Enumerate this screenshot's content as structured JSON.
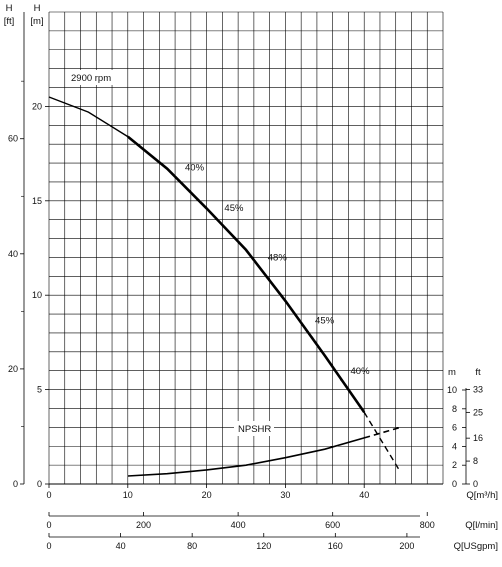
{
  "chart_data": {
    "type": "line",
    "title": "",
    "speed_label": "2900 rpm",
    "units": {
      "head_m_symbol": "H",
      "head_m": "[m]",
      "head_ft_symbol": "H",
      "head_ft": "[ft]",
      "npsh_m": "m",
      "npsh_ft": "ft",
      "q_m3h": "Q[m³/h]",
      "q_lmin": "Q[l/min]",
      "q_usgpm": "Q[USgpm]"
    },
    "axes": {
      "x_m3h": {
        "range": [
          0,
          50
        ],
        "ticks": [
          "0",
          "10",
          "20",
          "30",
          "40"
        ]
      },
      "x_lmin": {
        "ticks": [
          "0",
          "200",
          "400",
          "600",
          "800"
        ]
      },
      "x_usgpm": {
        "ticks": [
          "0",
          "40",
          "80",
          "120",
          "160",
          "200"
        ]
      },
      "y_head_m": {
        "range": [
          0,
          25
        ],
        "ticks": [
          "0",
          "5",
          "10",
          "15",
          "20"
        ]
      },
      "y_head_ft": {
        "ticks": [
          "0",
          "20",
          "40",
          "60"
        ]
      },
      "y_npsh_m": {
        "range": [
          0,
          10
        ],
        "ticks": [
          "0",
          "2",
          "4",
          "6",
          "8",
          "10"
        ]
      },
      "y_npsh_ft": {
        "ticks": [
          "0",
          "8",
          "16",
          "25",
          "33"
        ]
      },
      "grid": true
    },
    "series": [
      {
        "name": "",
        "points": [
          [
            0,
            20.5
          ],
          [
            5,
            19.7
          ],
          [
            10,
            18.4
          ],
          [
            15,
            16.7
          ],
          [
            20,
            14.6
          ],
          [
            25,
            12.4
          ],
          [
            30,
            9.7
          ],
          [
            35,
            6.8
          ],
          [
            40,
            3.8
          ]
        ],
        "dashed_extension": [
          [
            40,
            3.8
          ],
          [
            44.5,
            0.7
          ]
        ]
      },
      {
        "name": "NPSHR",
        "points": [
          [
            10,
            0.85
          ],
          [
            15,
            1.1
          ],
          [
            20,
            1.5
          ],
          [
            25,
            2.0
          ],
          [
            30,
            2.8
          ],
          [
            35,
            3.7
          ],
          [
            40,
            4.9
          ]
        ],
        "dashed_extension": [
          [
            40,
            4.9
          ],
          [
            44.5,
            6.0
          ]
        ]
      }
    ],
    "efficiency_labels": [
      {
        "label": "40%",
        "q": 16.5
      },
      {
        "label": "45%",
        "q": 21.5
      },
      {
        "label": "48%",
        "q": 27.0
      },
      {
        "label": "45%",
        "q": 33.0
      },
      {
        "label": "40%",
        "q": 37.5
      }
    ]
  }
}
